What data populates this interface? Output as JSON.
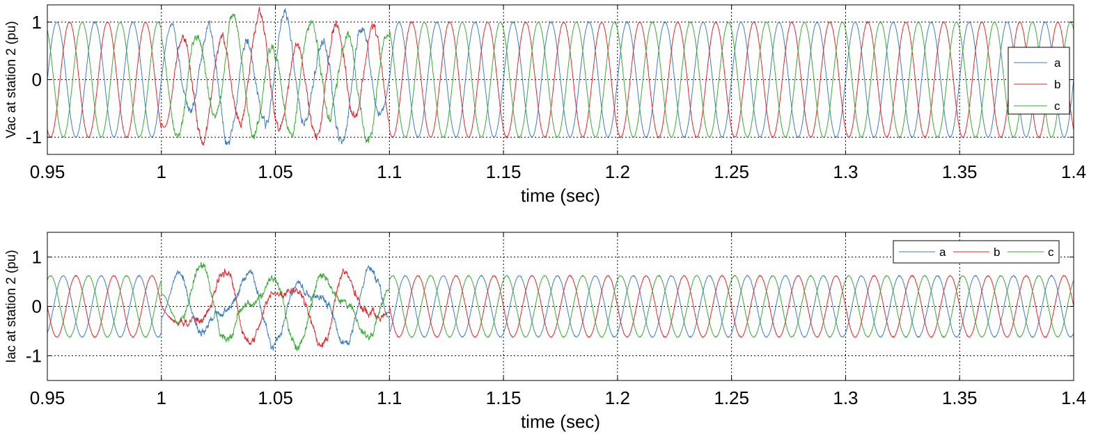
{
  "chart_data": [
    {
      "type": "line",
      "title": "",
      "xlabel": "time (sec)",
      "ylabel": "Vac at station 2 (pu)",
      "xlim": [
        0.95,
        1.4
      ],
      "ylim": [
        -1.3,
        1.3
      ],
      "xticks": [
        0.95,
        1.0,
        1.05,
        1.1,
        1.15,
        1.2,
        1.25,
        1.3,
        1.35,
        1.4
      ],
      "xtick_labels": [
        "0.95",
        "1",
        "1.05",
        "1.1",
        "1.15",
        "1.2",
        "1.25",
        "1.3",
        "1.35",
        "1.4"
      ],
      "yticks": [
        -1,
        0,
        1
      ],
      "ytick_labels": [
        "-1",
        "0",
        "1"
      ],
      "grid": true,
      "reference_lines": [
        1,
        -1
      ],
      "legend": {
        "placement": "right",
        "orientation": "vertical"
      },
      "fault_interval": [
        1.0,
        1.1
      ],
      "frequency_hz": 60,
      "series": [
        {
          "name": "a",
          "color": "#3d7ebf",
          "amplitude": 1.0,
          "phase_deg": 0
        },
        {
          "name": "b",
          "color": "#e0262c",
          "amplitude": 1.0,
          "phase_deg": -120
        },
        {
          "name": "c",
          "color": "#3aaa35",
          "amplitude": 1.0,
          "phase_deg": 120
        }
      ]
    },
    {
      "type": "line",
      "title": "",
      "xlabel": "time (sec)",
      "ylabel": "Iac at station 2 (pu)",
      "xlim": [
        0.95,
        1.4
      ],
      "ylim": [
        -1.5,
        1.5
      ],
      "xticks": [
        0.95,
        1.0,
        1.05,
        1.1,
        1.15,
        1.2,
        1.25,
        1.3,
        1.35,
        1.4
      ],
      "xtick_labels": [
        "0.95",
        "1",
        "1.05",
        "1.1",
        "1.15",
        "1.2",
        "1.25",
        "1.3",
        "1.35",
        "1.4"
      ],
      "yticks": [
        -1,
        0,
        1
      ],
      "ytick_labels": [
        "-1",
        "0",
        "1"
      ],
      "grid": true,
      "reference_lines": [
        1,
        -1
      ],
      "legend": {
        "placement": "top-right",
        "orientation": "horizontal"
      },
      "fault_interval": [
        1.0,
        1.1
      ],
      "frequency_hz": 60,
      "series": [
        {
          "name": "a",
          "color": "#3d7ebf",
          "amplitude": 0.62,
          "phase_deg": -60
        },
        {
          "name": "b",
          "color": "#e0262c",
          "amplitude": 0.62,
          "phase_deg": -180
        },
        {
          "name": "c",
          "color": "#3aaa35",
          "amplitude": 0.62,
          "phase_deg": 60
        }
      ]
    }
  ]
}
